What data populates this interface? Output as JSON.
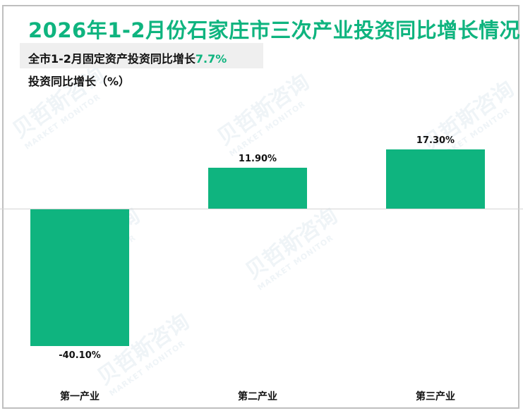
{
  "title": "2026年1-2月份石家庄市三次产业投资同比增长情况",
  "subtitle": {
    "prefix": "全市1-2月固定资产投资同比增长",
    "highlight": "7.7%"
  },
  "ylabel": "投资同比增长（%）",
  "watermark": {
    "cn": "贝哲斯咨询",
    "en": "MARKET MONITOR"
  },
  "colors": {
    "bar": "#0fb47f",
    "title": "#0fb47f",
    "border": "#bfbfbf"
  },
  "chart_data": {
    "type": "bar",
    "title": "2026年1-2月份石家庄市三次产业投资同比增长情况",
    "subtitle": "全市1-2月固定资产投资同比增长7.7%",
    "xlabel": "",
    "ylabel": "投资同比增长（%）",
    "categories": [
      "第一产业",
      "第二产业",
      "第三产业"
    ],
    "values": [
      -40.1,
      11.9,
      17.3
    ],
    "labels": [
      "-40.10%",
      "11.90%",
      "17.30%"
    ],
    "grid": false,
    "legend": null
  }
}
